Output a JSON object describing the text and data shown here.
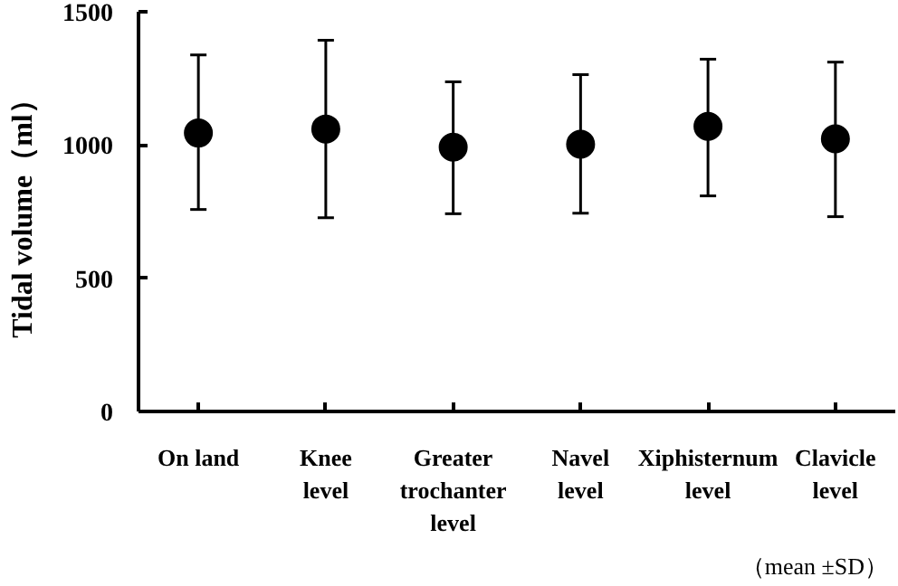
{
  "chart_data": {
    "type": "scatter",
    "ylabel": "Tidal volume（ml）",
    "categories": [
      "On land",
      "Knee\nlevel",
      "Greater\ntrochanter\nlevel",
      "Navel\nlevel",
      "Xiphisternum\nlevel",
      "Clavicle\nlevel"
    ],
    "values": [
      1045,
      1060,
      992,
      1003,
      1070,
      1023
    ],
    "errors": [
      [
        758,
        1338
      ],
      [
        727,
        1393
      ],
      [
        742,
        1237
      ],
      [
        744,
        1264
      ],
      [
        809,
        1322
      ],
      [
        731,
        1311
      ]
    ],
    "color": "#000000",
    "marker": "circle",
    "grid": false,
    "ylim": [
      0,
      1500
    ],
    "yticks": [
      0,
      500,
      1000,
      1500
    ],
    "annotations": [
      "（mean ±SD）"
    ]
  }
}
